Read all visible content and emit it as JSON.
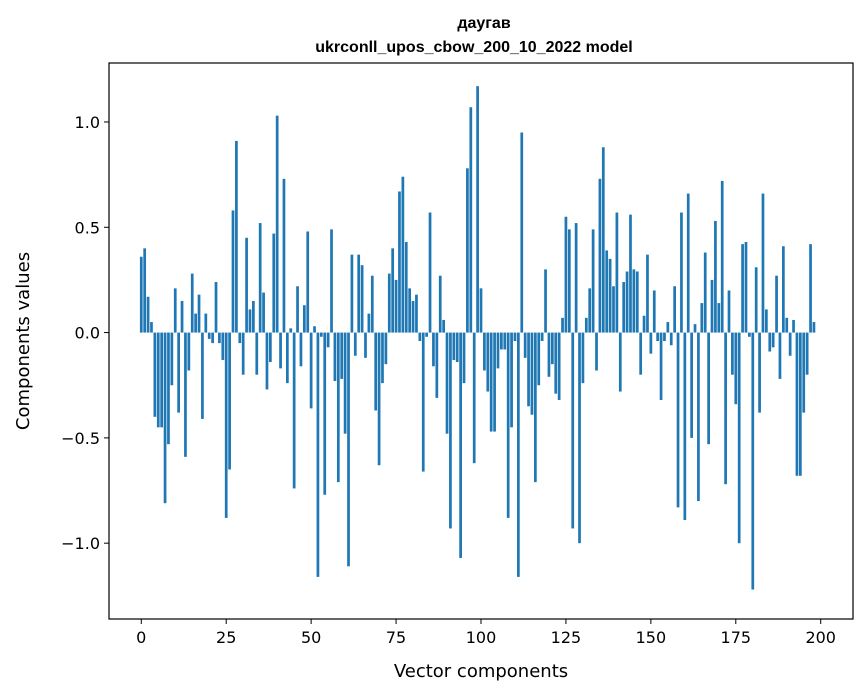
{
  "chart_data": {
    "type": "bar",
    "title": "даугав",
    "subtitle": "ukrconll_upos_cbow_200_10_2022 model",
    "xlabel": "Vector components",
    "ylabel": "Components values",
    "xlim": [
      -9.5,
      209.5
    ],
    "ylim": [
      -1.36,
      1.28
    ],
    "xticks": [
      0,
      25,
      50,
      75,
      100,
      125,
      150,
      175,
      200
    ],
    "yticks": [
      -1.0,
      -0.5,
      0.0,
      0.5,
      1.0
    ],
    "ytick_labels": [
      "−1.0",
      "−0.5",
      "0.0",
      "0.5",
      "1.0"
    ],
    "bar_color": "#1f77b4",
    "grid": false,
    "values": [
      0.36,
      0.4,
      0.17,
      0.05,
      -0.4,
      -0.45,
      -0.45,
      -0.81,
      -0.53,
      -0.25,
      0.21,
      -0.38,
      0.15,
      -0.59,
      -0.18,
      0.28,
      0.09,
      0.18,
      -0.41,
      0.09,
      -0.03,
      -0.05,
      0.24,
      -0.05,
      -0.13,
      -0.88,
      -0.65,
      0.58,
      0.91,
      -0.05,
      -0.2,
      0.45,
      0.11,
      0.15,
      -0.2,
      0.52,
      0.19,
      -0.27,
      -0.14,
      0.47,
      1.03,
      -0.17,
      0.73,
      -0.24,
      0.02,
      -0.74,
      0.22,
      -0.16,
      0.13,
      0.48,
      -0.36,
      0.03,
      -1.16,
      -0.02,
      -0.77,
      -0.07,
      0.49,
      -0.23,
      -0.71,
      -0.22,
      -0.48,
      -1.11,
      0.37,
      -0.11,
      0.37,
      0.32,
      -0.12,
      0.09,
      0.27,
      -0.37,
      -0.63,
      -0.24,
      -0.15,
      0.28,
      0.4,
      0.25,
      0.67,
      0.74,
      0.43,
      0.21,
      0.15,
      0.18,
      -0.04,
      -0.66,
      -0.02,
      0.57,
      -0.16,
      -0.31,
      0.27,
      0.06,
      -0.48,
      -0.93,
      -0.13,
      -0.14,
      -1.07,
      -0.24,
      0.78,
      1.07,
      -0.62,
      1.17,
      0.21,
      -0.18,
      -0.28,
      -0.47,
      -0.47,
      -0.17,
      -0.08,
      -0.08,
      -0.88,
      -0.45,
      -0.04,
      -1.16,
      0.95,
      -0.12,
      -0.35,
      -0.39,
      -0.71,
      -0.25,
      -0.04,
      0.3,
      -0.21,
      -0.15,
      -0.29,
      -0.32,
      0.07,
      0.55,
      0.49,
      -0.93,
      0.52,
      -1.0,
      -0.24,
      0.07,
      0.21,
      0.49,
      -0.18,
      0.73,
      0.88,
      0.39,
      0.35,
      0.22,
      0.57,
      -0.28,
      0.24,
      0.29,
      0.56,
      0.3,
      0.29,
      -0.2,
      0.08,
      0.37,
      -0.1,
      0.2,
      -0.04,
      -0.32,
      -0.04,
      0.05,
      -0.06,
      0.22,
      -0.83,
      0.57,
      -0.89,
      0.66,
      -0.5,
      0.04,
      -0.8,
      0.14,
      0.38,
      -0.53,
      0.25,
      0.53,
      0.14,
      0.72,
      -0.72,
      0.2,
      -0.2,
      -0.34,
      -1.0,
      0.42,
      0.43,
      -0.02,
      -1.22,
      0.31,
      -0.38,
      0.66,
      0.11,
      -0.09,
      -0.07,
      0.27,
      -0.22,
      0.41,
      0.07,
      -0.11,
      0.06,
      -0.68,
      -0.68,
      -0.38,
      -0.2,
      0.42,
      0.05
    ]
  }
}
